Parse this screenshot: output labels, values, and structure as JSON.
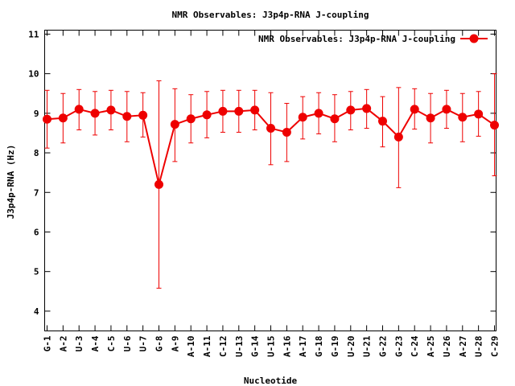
{
  "chart_data": {
    "type": "line",
    "title": "NMR Observables: J3p4p-RNA J-coupling",
    "xlabel": "Nucleotide",
    "ylabel": "J3p4p-RNA (Hz)",
    "ylim": [
      3.5,
      11.1
    ],
    "yticks": [
      4,
      5,
      6,
      7,
      8,
      9,
      10,
      11
    ],
    "grid": false,
    "legend_position": "top-right",
    "categories": [
      "G-1",
      "A-2",
      "U-3",
      "A-4",
      "C-5",
      "U-6",
      "U-7",
      "G-8",
      "A-9",
      "A-10",
      "A-11",
      "C-12",
      "U-13",
      "G-14",
      "U-15",
      "A-16",
      "A-17",
      "G-18",
      "G-19",
      "U-20",
      "U-21",
      "G-22",
      "G-23",
      "C-24",
      "A-25",
      "U-26",
      "A-27",
      "U-28",
      "C-29"
    ],
    "series": [
      {
        "name": "NMR Observables: J3p4p-RNA J-coupling",
        "color": "#ee0000",
        "values": [
          8.85,
          8.88,
          9.1,
          9.0,
          9.08,
          8.92,
          8.95,
          7.2,
          8.72,
          8.86,
          8.96,
          9.05,
          9.05,
          9.08,
          8.62,
          8.52,
          8.9,
          9.0,
          8.86,
          9.08,
          9.12,
          8.8,
          8.4,
          9.1,
          8.88,
          9.1,
          8.9,
          8.98,
          8.7
        ],
        "err_low": [
          8.12,
          8.25,
          8.58,
          8.45,
          8.58,
          8.28,
          8.4,
          4.58,
          7.78,
          8.25,
          8.38,
          8.52,
          8.52,
          8.58,
          7.7,
          7.78,
          8.35,
          8.48,
          8.28,
          8.58,
          8.62,
          8.15,
          7.12,
          8.6,
          8.25,
          8.62,
          8.28,
          8.42,
          7.42
        ],
        "err_high": [
          9.58,
          9.5,
          9.6,
          9.55,
          9.58,
          9.55,
          9.52,
          9.82,
          9.62,
          9.47,
          9.55,
          9.58,
          9.58,
          9.58,
          9.52,
          9.25,
          9.42,
          9.52,
          9.47,
          9.55,
          9.6,
          9.42,
          9.65,
          9.62,
          9.5,
          9.58,
          9.5,
          9.55,
          10.0
        ]
      }
    ]
  }
}
